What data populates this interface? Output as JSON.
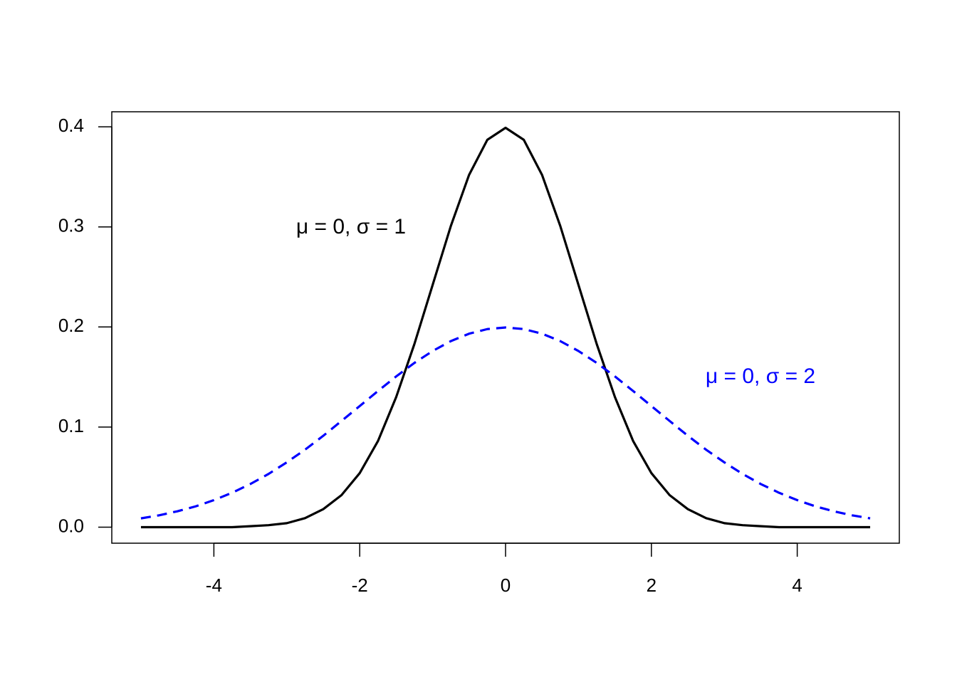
{
  "chart_data": {
    "type": "line",
    "x": [
      -5,
      -4.75,
      -4.5,
      -4.25,
      -4,
      -3.75,
      -3.5,
      -3.25,
      -3,
      -2.75,
      -2.5,
      -2.25,
      -2,
      -1.75,
      -1.5,
      -1.25,
      -1,
      -0.75,
      -0.5,
      -0.25,
      0,
      0.25,
      0.5,
      0.75,
      1,
      1.25,
      1.5,
      1.75,
      2,
      2.25,
      2.5,
      2.75,
      3,
      3.25,
      3.5,
      3.75,
      4,
      4.25,
      4.5,
      4.75,
      5
    ],
    "series": [
      {
        "name": "μ = 0, σ = 1",
        "color": "#000000",
        "dashed": false,
        "values": [
          0,
          0,
          0,
          0,
          0,
          0,
          0.001,
          0.002,
          0.004,
          0.009,
          0.018,
          0.032,
          0.054,
          0.086,
          0.13,
          0.183,
          0.242,
          0.301,
          0.352,
          0.387,
          0.399,
          0.387,
          0.352,
          0.301,
          0.242,
          0.183,
          0.13,
          0.086,
          0.054,
          0.032,
          0.018,
          0.009,
          0.004,
          0.002,
          0.001,
          0,
          0,
          0,
          0,
          0,
          0
        ]
      },
      {
        "name": "μ = 0, σ = 2",
        "color": "#0000ff",
        "dashed": true,
        "values": [
          0.0088,
          0.0119,
          0.0159,
          0.0208,
          0.027,
          0.0344,
          0.0431,
          0.0532,
          0.0648,
          0.0774,
          0.0913,
          0.1061,
          0.121,
          0.136,
          0.1506,
          0.1641,
          0.176,
          0.1859,
          0.1933,
          0.1979,
          0.1995,
          0.1979,
          0.1933,
          0.1859,
          0.176,
          0.1641,
          0.1506,
          0.136,
          0.121,
          0.1061,
          0.0913,
          0.0774,
          0.0648,
          0.0532,
          0.0431,
          0.0344,
          0.027,
          0.0208,
          0.0159,
          0.0119,
          0.0088
        ]
      }
    ],
    "xlim": [
      -5.4,
      5.4
    ],
    "ylim": [
      -0.016,
      0.415
    ],
    "xticks": [
      -4,
      -2,
      0,
      2,
      4
    ],
    "yticks": [
      {
        "value": 0,
        "label": "0.0"
      },
      0.1,
      0.2,
      0.3,
      0.4
    ],
    "grid": false
  }
}
